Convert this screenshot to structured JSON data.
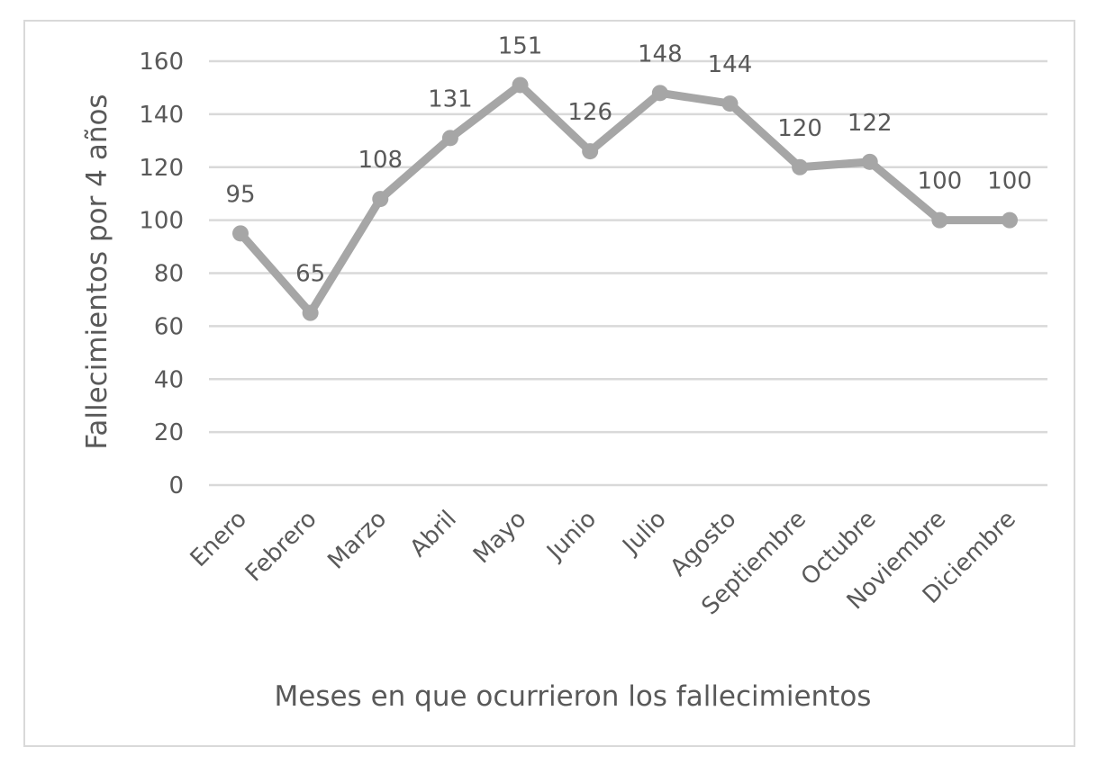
{
  "chart_data": {
    "type": "line",
    "title": "",
    "xlabel": "Meses en que ocurrieron los fallecimientos",
    "ylabel": "Fallecimientos por 4 años",
    "categories": [
      "Enero",
      "Febrero",
      "Marzo",
      "Abril",
      "Mayo",
      "Junio",
      "Julio",
      "Agosto",
      "Septiembre",
      "Octubre",
      "Noviembre",
      "Diciembre"
    ],
    "series": [
      {
        "values": [
          95,
          65,
          108,
          131,
          151,
          126,
          148,
          144,
          120,
          122,
          100,
          100
        ],
        "color": "#a6a6a6"
      }
    ],
    "data_labels": [
      "95",
      "65",
      "108",
      "131",
      "151",
      "126",
      "148",
      "144",
      "120",
      "122",
      "100",
      "100"
    ],
    "ylim": [
      0,
      160
    ],
    "yticks": [
      "0",
      "20",
      "40",
      "60",
      "80",
      "100",
      "120",
      "140",
      "160"
    ],
    "grid": true,
    "legend": "none",
    "colors": {
      "line": "#a6a6a6",
      "grid": "#d9d9d9",
      "text": "#595959",
      "frame": "#d9d9d9"
    }
  }
}
